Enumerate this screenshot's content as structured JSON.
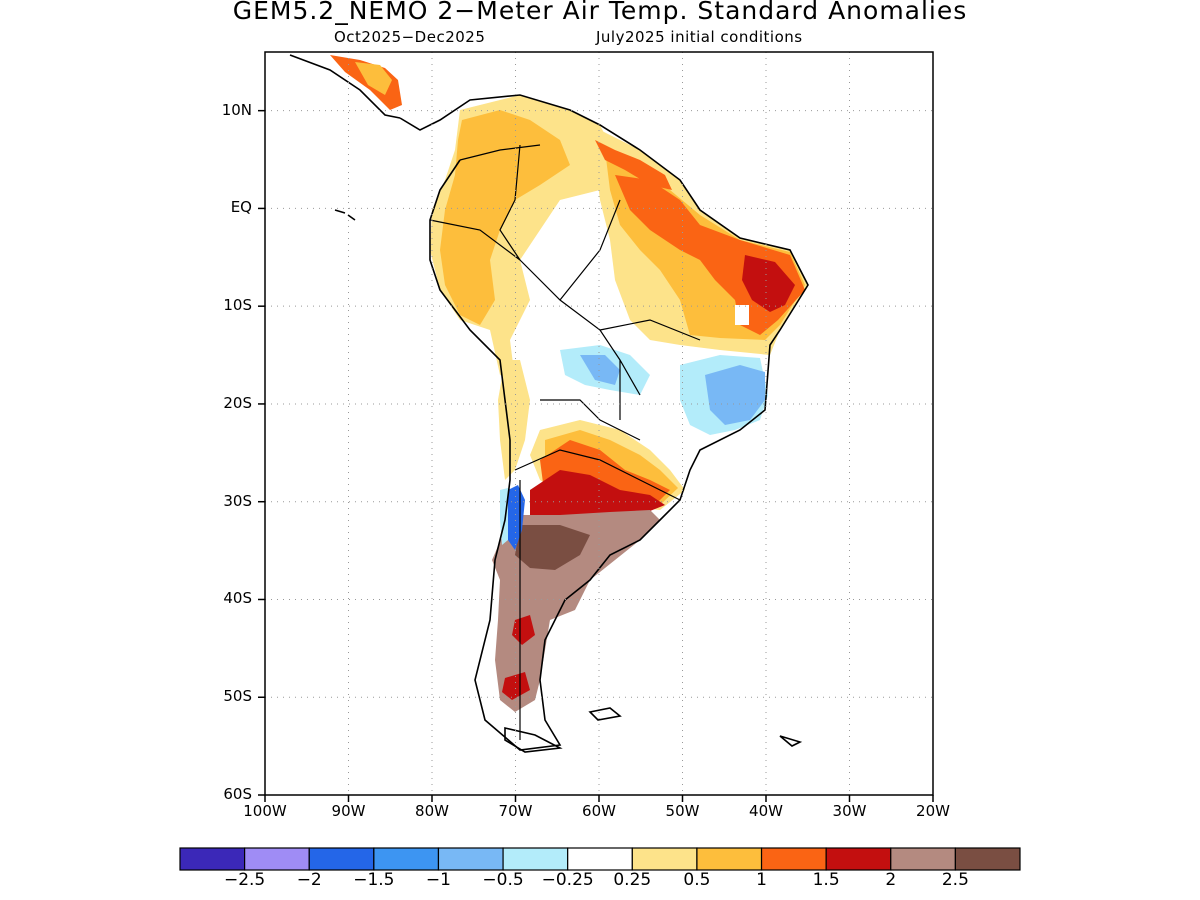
{
  "title": "GEM5.2_NEMO 2−Meter Air Temp. Standard Anomalies",
  "subtitle_left": "Oct2025−Dec2025",
  "subtitle_right": "July2025 initial conditions",
  "map": {
    "region": "South America",
    "lat_range": [
      -60,
      16
    ],
    "lon_range": [
      -100,
      -20
    ],
    "grid": "dotted",
    "lat_labels": [
      "10N",
      "EQ",
      "10S",
      "20S",
      "30S",
      "40S",
      "50S",
      "60S"
    ],
    "lon_labels": [
      "100W",
      "90W",
      "80W",
      "70W",
      "60W",
      "50W",
      "40W",
      "30W",
      "20W"
    ]
  },
  "colorbar": {
    "colors": [
      "#3b28b8",
      "#9f8cf5",
      "#2466e8",
      "#3d95f2",
      "#78b8f5",
      "#b3ecfa",
      "#ffffff",
      "#fde38a",
      "#fdbe3c",
      "#fa6414",
      "#c30f0f",
      "#b48a80",
      "#7a4e42"
    ],
    "labels": [
      "−2.5",
      "−2",
      "−1.5",
      "−1",
      "−0.5",
      "−0.25",
      "0.25",
      "0.5",
      "1",
      "1.5",
      "2",
      "2.5"
    ]
  }
}
